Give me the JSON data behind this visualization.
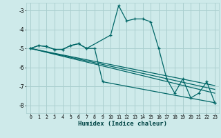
{
  "xlabel": "Humidex (Indice chaleur)",
  "bg_color": "#ceeaea",
  "grid_color": "#aacfcf",
  "line_color": "#006666",
  "xlim": [
    -0.5,
    23.5
  ],
  "ylim": [
    -8.4,
    -2.6
  ],
  "yticks": [
    -8,
    -7,
    -6,
    -5,
    -4,
    -3
  ],
  "xticks": [
    0,
    1,
    2,
    3,
    4,
    5,
    6,
    7,
    8,
    9,
    10,
    11,
    12,
    13,
    14,
    15,
    16,
    17,
    18,
    19,
    20,
    21,
    22,
    23
  ],
  "curve1_x": [
    0,
    1,
    2,
    3,
    4,
    5,
    6,
    7,
    10,
    11,
    12,
    13,
    14,
    15,
    16,
    17,
    18,
    19,
    20,
    21,
    22,
    23
  ],
  "curve1_y": [
    -5.0,
    -4.85,
    -4.9,
    -5.05,
    -5.05,
    -4.85,
    -4.75,
    -5.0,
    -4.3,
    -2.75,
    -3.55,
    -3.45,
    -3.45,
    -3.6,
    -5.0,
    -6.6,
    -7.35,
    -6.6,
    -7.6,
    -7.35,
    -6.75,
    -7.85
  ],
  "curve2_x": [
    0,
    1,
    2,
    3,
    4,
    5,
    6,
    7,
    8,
    9,
    23
  ],
  "curve2_y": [
    -5.0,
    -4.85,
    -4.9,
    -5.05,
    -5.05,
    -4.85,
    -4.75,
    -5.0,
    -5.0,
    -6.75,
    -7.85
  ],
  "line1_x": [
    0,
    23
  ],
  "line1_y": [
    -5.0,
    -6.95
  ],
  "line2_x": [
    0,
    23
  ],
  "line2_y": [
    -5.0,
    -7.15
  ],
  "line3_x": [
    0,
    23
  ],
  "line3_y": [
    -5.0,
    -7.35
  ]
}
